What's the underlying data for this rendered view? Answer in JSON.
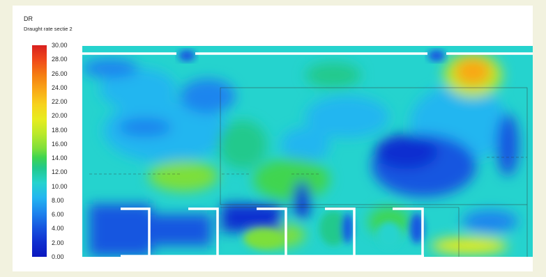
{
  "header": {
    "title": "DR",
    "subtitle": "Draught rate sectie 2"
  },
  "legend": {
    "ticks": [
      "30.00",
      "28.00",
      "26.00",
      "24.00",
      "22.00",
      "20.00",
      "18.00",
      "16.00",
      "14.00",
      "12.00",
      "10.00",
      "8.00",
      "6.00",
      "4.00",
      "2.00",
      "0.00"
    ],
    "min": 0,
    "max": 30,
    "colors": {
      "high": "#d9201f",
      "orange": "#f57d12",
      "yellow": "#f7d21c",
      "green": "#3fd54f",
      "cyan": "#25d3ce",
      "blue": "#1656e0",
      "low": "#0b17bf"
    }
  }
}
